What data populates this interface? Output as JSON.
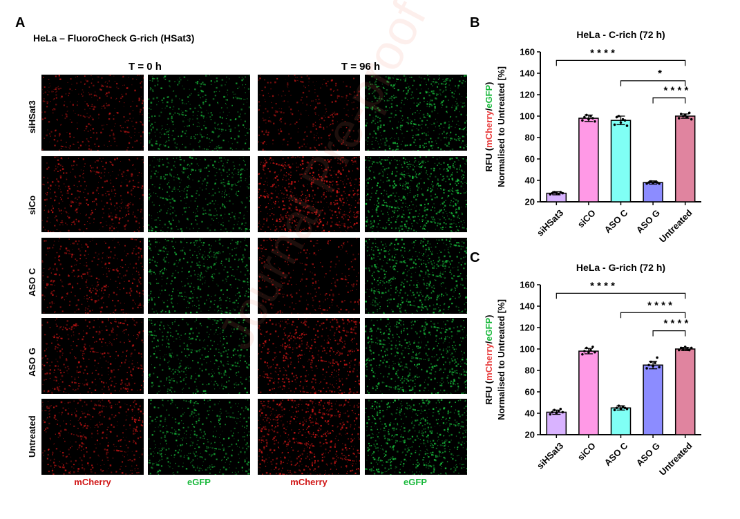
{
  "panel_a": {
    "letter": "A",
    "title": "HeLa – FluoroCheck G-rich (HSat3)",
    "timepoints": [
      "T = 0 h",
      "T = 96 h"
    ],
    "rows": [
      {
        "label": "siHSat3",
        "red": [
          0.35,
          0.25
        ],
        "green": [
          0.45,
          0.75
        ]
      },
      {
        "label": "siCo",
        "red": [
          0.45,
          0.95
        ],
        "green": [
          0.55,
          1.0
        ]
      },
      {
        "label": "ASO C",
        "red": [
          0.4,
          0.25
        ],
        "green": [
          0.55,
          0.85
        ]
      },
      {
        "label": "ASO G",
        "red": [
          0.45,
          0.7
        ],
        "green": [
          0.5,
          0.8
        ]
      },
      {
        "label": "Untreated",
        "red": [
          0.5,
          0.9
        ],
        "green": [
          0.55,
          0.9
        ]
      }
    ],
    "channels": [
      "mCherry",
      "eGFP",
      "mCherry",
      "eGFP"
    ],
    "colors": {
      "red_channel": "#d01616",
      "green_channel": "#17b83a"
    }
  },
  "watermark": "Journal Pre-proof",
  "chart_data": [
    {
      "panel": "B",
      "type": "bar",
      "title": "HeLa - C-rich (72 h)",
      "ylabel_parts": [
        "RFU (",
        "mCherry",
        "/",
        "eGFP",
        ")"
      ],
      "ylabel_line2": "Normalised to Untreated [%]",
      "ylim": [
        20,
        160
      ],
      "yticks": [
        20,
        40,
        60,
        80,
        100,
        120,
        140,
        160
      ],
      "categories": [
        "siHSat3",
        "siCO",
        "ASO C",
        "ASO G",
        "Untreated"
      ],
      "values": [
        28,
        98,
        96,
        38,
        100
      ],
      "errors": [
        1.5,
        3,
        4,
        1.5,
        2
      ],
      "points": [
        [
          27,
          28,
          29,
          28.5,
          27.5,
          29,
          28
        ],
        [
          96,
          99,
          101,
          97,
          100,
          98,
          95
        ],
        [
          92,
          99,
          100,
          94,
          97,
          96,
          91
        ],
        [
          37,
          38,
          39,
          37.5,
          38.5,
          38,
          37
        ],
        [
          98,
          102,
          100,
          101,
          99,
          103,
          97
        ]
      ],
      "bar_colors": [
        "#d9b3ff",
        "#ff99e6",
        "#80fff5",
        "#8c8cff",
        "#e0849f"
      ],
      "significance": [
        {
          "from": 0,
          "to": 4,
          "y": 152,
          "label": "* * * *"
        },
        {
          "from": 2,
          "to": 4,
          "y": 133,
          "label": "*"
        },
        {
          "from": 3,
          "to": 4,
          "y": 117,
          "label": "* * * *"
        }
      ]
    },
    {
      "panel": "C",
      "type": "bar",
      "title": "HeLa - G-rich (72 h)",
      "ylabel_parts": [
        "RFU (",
        "mCherry",
        "/",
        "eGFP",
        ")"
      ],
      "ylabel_line2": "Normalised to Untreated [%]",
      "ylim": [
        20,
        160
      ],
      "yticks": [
        20,
        40,
        60,
        80,
        100,
        120,
        140,
        160
      ],
      "categories": [
        "siHSat3",
        "siCO",
        "ASO C",
        "ASO G",
        "Untreated"
      ],
      "values": [
        41,
        98,
        45,
        85,
        100
      ],
      "errors": [
        2,
        2.5,
        2,
        3.5,
        1.5
      ],
      "points": [
        [
          39,
          41,
          43,
          40,
          42,
          44,
          41
        ],
        [
          95,
          98,
          101,
          97,
          99,
          102,
          97
        ],
        [
          43,
          45,
          47,
          44,
          46,
          45,
          44
        ],
        [
          82,
          85,
          88,
          84,
          87,
          92,
          83
        ],
        [
          99,
          101,
          100,
          102,
          100,
          99,
          101
        ]
      ],
      "bar_colors": [
        "#d9b3ff",
        "#ff99e6",
        "#80fff5",
        "#8c8cff",
        "#e0849f"
      ],
      "significance": [
        {
          "from": 0,
          "to": 4,
          "y": 152,
          "label": "* * * *"
        },
        {
          "from": 2,
          "to": 4,
          "y": 134,
          "label": "* * * *"
        },
        {
          "from": 3,
          "to": 4,
          "y": 117,
          "label": "* * * *"
        }
      ]
    }
  ]
}
